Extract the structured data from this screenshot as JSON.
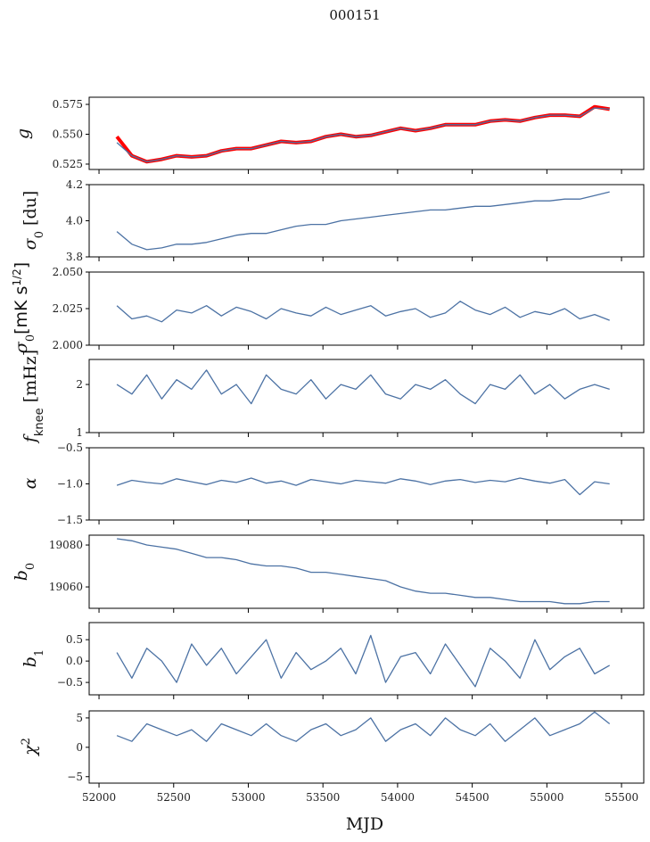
{
  "chart_data": {
    "type": "line",
    "title": "000151",
    "xlabel": "MJD",
    "xlim": [
      51934,
      55649
    ],
    "xticks": [
      52000,
      52500,
      53000,
      53500,
      54000,
      54500,
      55000,
      55500
    ],
    "xticklabels": [
      "52000",
      "52500",
      "53000",
      "53500",
      "54000",
      "54500",
      "55000",
      "55500"
    ],
    "x": [
      52120,
      52220,
      52320,
      52420,
      52520,
      52620,
      52720,
      52820,
      52920,
      53020,
      53120,
      53220,
      53320,
      53420,
      53520,
      53620,
      53720,
      53820,
      53920,
      54020,
      54120,
      54220,
      54320,
      54420,
      54520,
      54620,
      54720,
      54820,
      54920,
      55020,
      55120,
      55220,
      55320,
      55420
    ],
    "colors": {
      "data": "#4c72a4",
      "fit": "#ff0000"
    },
    "panels": [
      {
        "id": "g",
        "ylabel": {
          "main": "g",
          "sub": "",
          "sup": "",
          "suffix": ""
        },
        "ylim": [
          0.5205,
          0.581
        ],
        "yticks": [
          0.525,
          0.55,
          0.575
        ],
        "yticklabels": [
          "0.525",
          "0.550",
          "0.575"
        ],
        "series": [
          {
            "name": "fit",
            "color": "#ff0000",
            "width": 4,
            "values": [
              0.548,
              0.532,
              0.527,
              0.529,
              0.532,
              0.531,
              0.532,
              0.536,
              0.538,
              0.538,
              0.541,
              0.544,
              0.543,
              0.544,
              0.548,
              0.55,
              0.548,
              0.549,
              0.552,
              0.555,
              0.553,
              0.555,
              0.558,
              0.558,
              0.558,
              0.561,
              0.562,
              0.561,
              0.564,
              0.566,
              0.566,
              0.565,
              0.573,
              0.571
            ]
          },
          {
            "name": "data",
            "color": "#4c72a4",
            "width": 1.3,
            "values": [
              0.543,
              0.532,
              0.527,
              0.529,
              0.532,
              0.531,
              0.532,
              0.536,
              0.538,
              0.538,
              0.541,
              0.544,
              0.543,
              0.544,
              0.548,
              0.55,
              0.548,
              0.549,
              0.552,
              0.555,
              0.553,
              0.555,
              0.558,
              0.558,
              0.558,
              0.561,
              0.562,
              0.561,
              0.564,
              0.566,
              0.566,
              0.565,
              0.572,
              0.571
            ]
          }
        ]
      },
      {
        "id": "sigma0-du",
        "ylabel": {
          "main": "σ",
          "sub": "0",
          "sup": "",
          "suffix": " [du]"
        },
        "ylim": [
          3.8,
          4.2
        ],
        "yticks": [
          3.8,
          4.0,
          4.2
        ],
        "yticklabels": [
          "3.8",
          "4.0",
          "4.2"
        ],
        "series": [
          {
            "name": "data",
            "color": "#4c72a4",
            "width": 1.3,
            "values": [
              3.94,
              3.87,
              3.84,
              3.85,
              3.87,
              3.87,
              3.88,
              3.9,
              3.92,
              3.93,
              3.93,
              3.95,
              3.97,
              3.98,
              3.98,
              4.0,
              4.01,
              4.02,
              4.03,
              4.04,
              4.05,
              4.06,
              4.06,
              4.07,
              4.08,
              4.08,
              4.09,
              4.1,
              4.11,
              4.11,
              4.12,
              4.12,
              4.14,
              4.16
            ]
          }
        ]
      },
      {
        "id": "sigma0-mk",
        "ylabel": {
          "main": "σ",
          "sub": "0",
          "sup": "1/2",
          "suffix": "[mK s",
          "close": "]"
        },
        "ylim": [
          2.0,
          2.05
        ],
        "yticks": [
          2.0,
          2.025,
          2.05
        ],
        "yticklabels": [
          "2.000",
          "2.025",
          "2.050"
        ],
        "series": [
          {
            "name": "data",
            "color": "#4c72a4",
            "width": 1.3,
            "values": [
              2.027,
              2.018,
              2.02,
              2.016,
              2.024,
              2.022,
              2.027,
              2.02,
              2.026,
              2.023,
              2.018,
              2.025,
              2.022,
              2.02,
              2.026,
              2.021,
              2.024,
              2.027,
              2.02,
              2.023,
              2.025,
              2.019,
              2.022,
              2.03,
              2.024,
              2.021,
              2.026,
              2.019,
              2.023,
              2.021,
              2.025,
              2.018,
              2.021,
              2.017
            ]
          }
        ]
      },
      {
        "id": "fknee",
        "ylabel": {
          "main": "f",
          "sub": "knee",
          "sup": "",
          "suffix": " [mHz]"
        },
        "ylim": [
          1,
          2.52
        ],
        "yticks": [
          1,
          2
        ],
        "yticklabels": [
          "1",
          "2"
        ],
        "series": [
          {
            "name": "data",
            "color": "#4c72a4",
            "width": 1.3,
            "values": [
              2.0,
              1.8,
              2.2,
              1.7,
              2.1,
              1.9,
              2.3,
              1.8,
              2.0,
              1.6,
              2.2,
              1.9,
              1.8,
              2.1,
              1.7,
              2.0,
              1.9,
              2.2,
              1.8,
              1.7,
              2.0,
              1.9,
              2.1,
              1.8,
              1.6,
              2.0,
              1.9,
              2.2,
              1.8,
              2.0,
              1.7,
              1.9,
              2.0,
              1.9
            ]
          }
        ]
      },
      {
        "id": "alpha",
        "ylabel": {
          "main": "α",
          "sub": "",
          "sup": "",
          "suffix": ""
        },
        "ylim": [
          -1.5,
          -0.5
        ],
        "yticks": [
          -1.5,
          -1.0,
          -0.5
        ],
        "yticklabels": [
          "−1.5",
          "−1.0",
          "−0.5"
        ],
        "series": [
          {
            "name": "data",
            "color": "#4c72a4",
            "width": 1.3,
            "values": [
              -1.02,
              -0.95,
              -0.98,
              -1.0,
              -0.93,
              -0.97,
              -1.01,
              -0.95,
              -0.98,
              -0.92,
              -0.99,
              -0.96,
              -1.02,
              -0.94,
              -0.97,
              -1.0,
              -0.95,
              -0.97,
              -0.99,
              -0.93,
              -0.96,
              -1.01,
              -0.96,
              -0.94,
              -0.98,
              -0.95,
              -0.97,
              -0.92,
              -0.96,
              -0.99,
              -0.94,
              -1.15,
              -0.97,
              -1.0
            ]
          }
        ]
      },
      {
        "id": "b0",
        "ylabel": {
          "main": "b",
          "sub": "0",
          "sup": "",
          "suffix": ""
        },
        "ylim": [
          19049.8,
          19084.7
        ],
        "yticks": [
          19060,
          19080
        ],
        "yticklabels": [
          "19060",
          "19080"
        ],
        "series": [
          {
            "name": "data",
            "color": "#4c72a4",
            "width": 1.3,
            "values": [
              19083,
              19082,
              19080,
              19079,
              19078,
              19076,
              19074,
              19074,
              19073,
              19071,
              19070,
              19070,
              19069,
              19067,
              19067,
              19066,
              19065,
              19064,
              19063,
              19060,
              19058,
              19057,
              19057,
              19056,
              19055,
              19055,
              19054,
              19053,
              19053,
              19053,
              19052,
              19052,
              19053,
              19053
            ]
          }
        ]
      },
      {
        "id": "b1",
        "ylabel": {
          "main": "b",
          "sub": "1",
          "sup": "",
          "suffix": ""
        },
        "ylim": [
          -0.79,
          0.9
        ],
        "yticks": [
          -0.5,
          0,
          0.5
        ],
        "yticklabels": [
          "−0.5",
          "0.0",
          "0.5"
        ],
        "series": [
          {
            "name": "data",
            "color": "#4c72a4",
            "width": 1.3,
            "values": [
              0.2,
              -0.4,
              0.3,
              0.0,
              -0.5,
              0.4,
              -0.1,
              0.3,
              -0.3,
              0.1,
              0.5,
              -0.4,
              0.2,
              -0.2,
              0.0,
              0.3,
              -0.3,
              0.6,
              -0.5,
              0.1,
              0.2,
              -0.3,
              0.4,
              -0.1,
              -0.6,
              0.3,
              0.0,
              -0.4,
              0.5,
              -0.2,
              0.1,
              0.3,
              -0.3,
              -0.1
            ]
          }
        ]
      },
      {
        "id": "chi2",
        "ylabel": {
          "main": "χ",
          "sub": "",
          "sup": "2",
          "suffix": ""
        },
        "ylim": [
          -6.1,
          6.2
        ],
        "yticks": [
          -5,
          0,
          5
        ],
        "yticklabels": [
          "−5",
          "0",
          "5"
        ],
        "series": [
          {
            "name": "data",
            "color": "#4c72a4",
            "width": 1.3,
            "values": [
              2,
              1,
              4,
              3,
              2,
              3,
              1,
              4,
              3,
              2,
              4,
              2,
              1,
              3,
              4,
              2,
              3,
              5,
              1,
              3,
              4,
              2,
              5,
              3,
              2,
              4,
              1,
              3,
              5,
              2,
              3,
              4,
              6,
              4
            ]
          }
        ]
      }
    ]
  }
}
